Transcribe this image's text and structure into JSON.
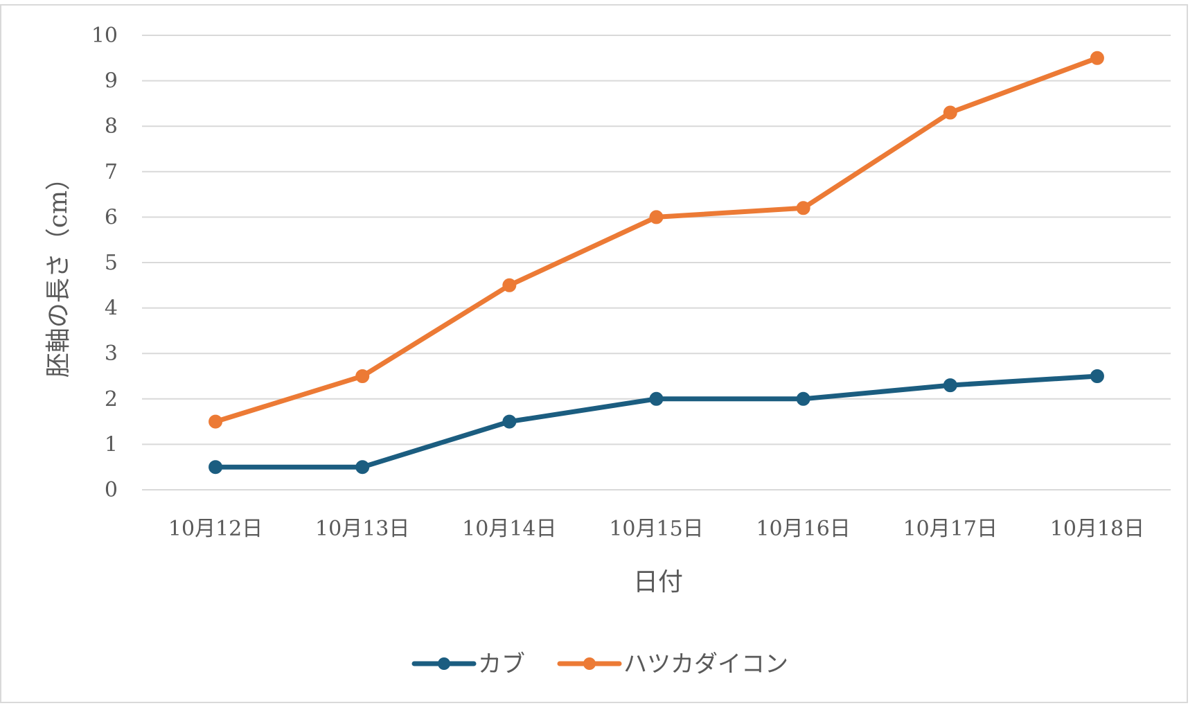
{
  "chart_data": {
    "type": "line",
    "title": "",
    "xlabel": "日付",
    "ylabel": "胚軸の長さ（cm）",
    "categories": [
      "10月12日",
      "10月13日",
      "10月14日",
      "10月15日",
      "10月16日",
      "10月17日",
      "10月18日"
    ],
    "ylim": [
      0,
      10
    ],
    "yticks": [
      "0",
      "1",
      "2",
      "3",
      "4",
      "5",
      "6",
      "7",
      "8",
      "9",
      "10"
    ],
    "grid": true,
    "legend_position": "bottom",
    "series": [
      {
        "name": "カブ",
        "color": "#1b5d80",
        "values": [
          0.5,
          0.5,
          1.5,
          2.0,
          2.0,
          2.3,
          2.5
        ]
      },
      {
        "name": "ハツカダイコン",
        "color": "#ec7a35",
        "values": [
          1.5,
          2.5,
          4.5,
          6.0,
          6.2,
          8.3,
          9.5
        ]
      }
    ]
  }
}
